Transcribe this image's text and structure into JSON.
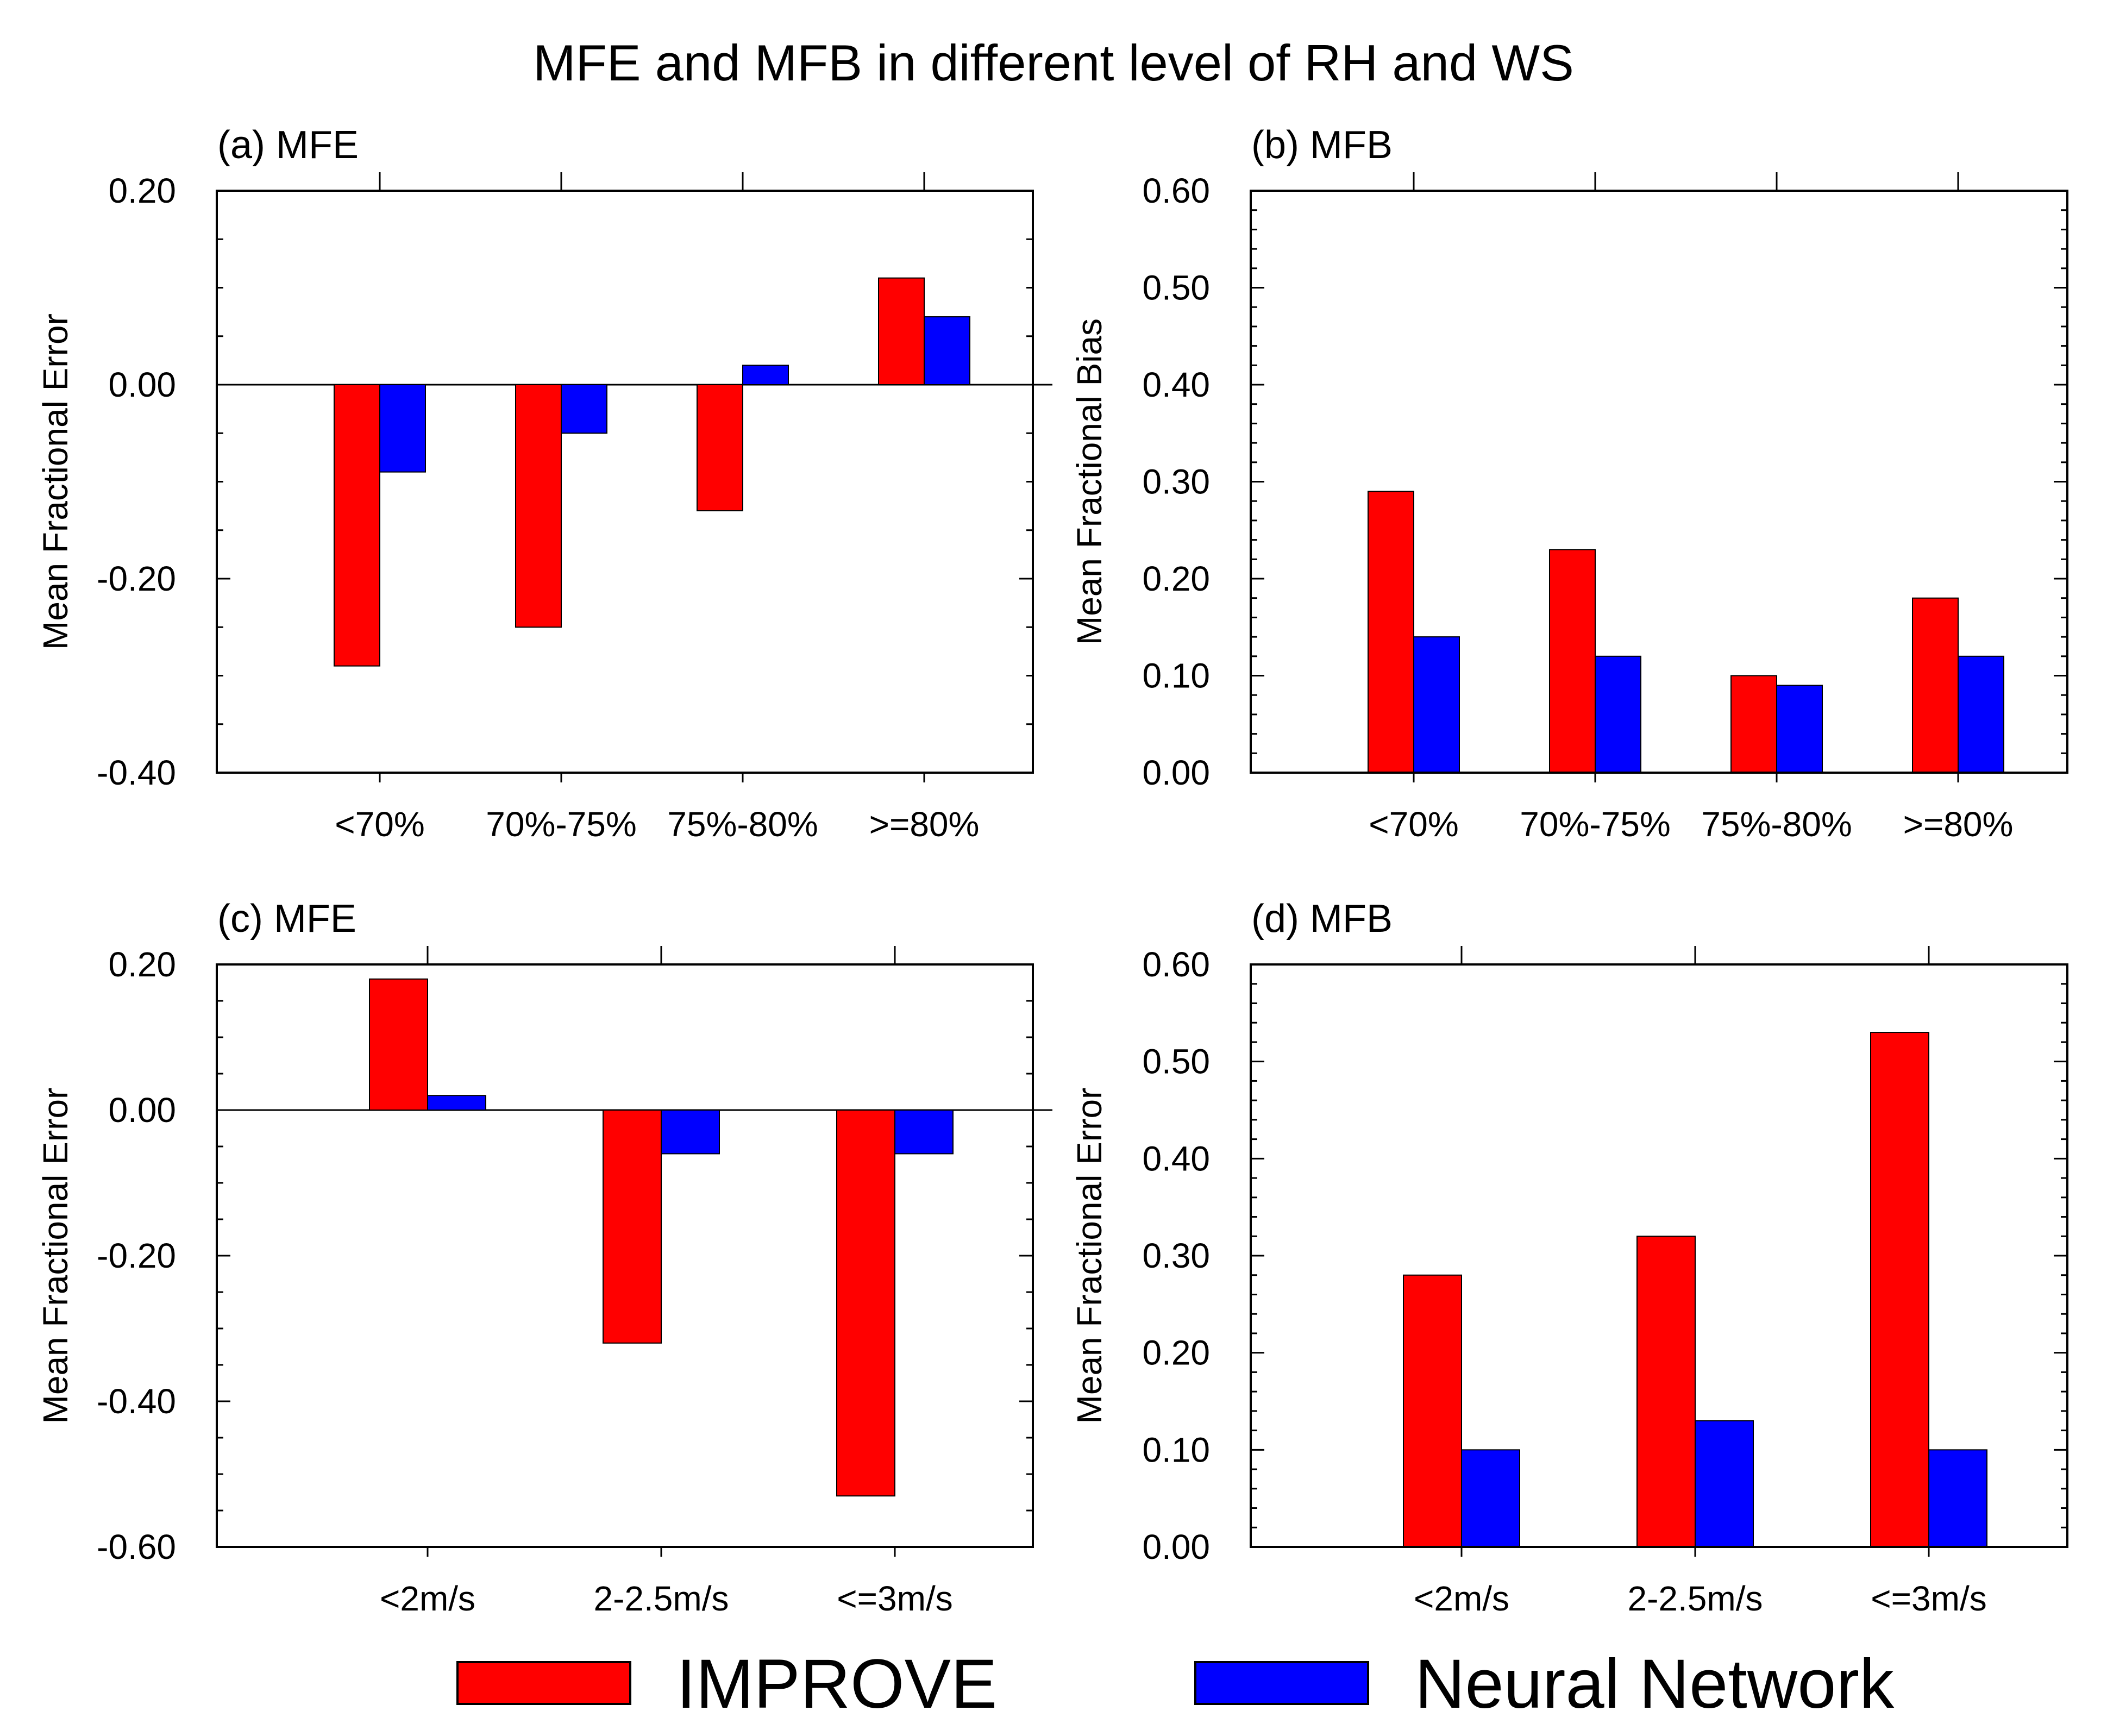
{
  "figure_title": "MFE and MFB in different level of RH and WS",
  "colors": {
    "IMPROVE": "#ff0000",
    "Neural Network": "#0000ff",
    "axis": "#000000"
  },
  "legend": {
    "placement": "bottom-center",
    "items": [
      {
        "label": "IMPROVE",
        "color": "#ff0000"
      },
      {
        "label": "Neural Network",
        "color": "#0000ff"
      }
    ]
  },
  "chart_data": [
    {
      "panel": "(a)",
      "title": "(a)  MFE",
      "type": "bar",
      "ylabel": "Mean Fractional Error",
      "ylim": [
        -0.4,
        0.2
      ],
      "yticks": [
        -0.4,
        -0.2,
        0.0,
        0.2
      ],
      "ytick_labels": [
        "-0.40",
        "-0.20",
        "0.00",
        "0.20"
      ],
      "minor_step": 0.05,
      "zero_line": true,
      "grid": false,
      "categories": [
        "<70%",
        "70%-75%",
        "75%-80%",
        ">=80%"
      ],
      "series": [
        {
          "name": "IMPROVE",
          "values": [
            -0.29,
            -0.25,
            -0.13,
            0.11
          ]
        },
        {
          "name": "Neural Network",
          "values": [
            -0.09,
            -0.05,
            0.02,
            0.07
          ]
        }
      ]
    },
    {
      "panel": "(b)",
      "title": "(b) MFB",
      "type": "bar",
      "ylabel": "Mean Fractional Bias",
      "ylim": [
        0.0,
        0.6
      ],
      "yticks": [
        0.0,
        0.1,
        0.2,
        0.3,
        0.4,
        0.5,
        0.6
      ],
      "ytick_labels": [
        "0.00",
        "0.10",
        "0.20",
        "0.30",
        "0.40",
        "0.50",
        "0.60"
      ],
      "minor_step": 0.02,
      "zero_line": false,
      "grid": false,
      "categories": [
        "<70%",
        "70%-75%",
        "75%-80%",
        ">=80%"
      ],
      "series": [
        {
          "name": "IMPROVE",
          "values": [
            0.29,
            0.23,
            0.1,
            0.18
          ]
        },
        {
          "name": "Neural Network",
          "values": [
            0.14,
            0.12,
            0.09,
            0.12
          ]
        }
      ]
    },
    {
      "panel": "(c)",
      "title": "(c) MFE",
      "type": "bar",
      "ylabel": "Mean Fractional Error",
      "ylim": [
        -0.6,
        0.2
      ],
      "yticks": [
        -0.6,
        -0.4,
        -0.2,
        0.0,
        0.2
      ],
      "ytick_labels": [
        "-0.60",
        "-0.40",
        "-0.20",
        "0.00",
        "0.20"
      ],
      "minor_step": 0.05,
      "zero_line": true,
      "grid": false,
      "categories": [
        "<2m/s",
        "2-2.5m/s",
        "<=3m/s"
      ],
      "series": [
        {
          "name": "IMPROVE",
          "values": [
            0.18,
            -0.32,
            -0.53
          ]
        },
        {
          "name": "Neural Network",
          "values": [
            0.02,
            -0.06,
            -0.06
          ]
        }
      ]
    },
    {
      "panel": "(d)",
      "title": "(d) MFB",
      "type": "bar",
      "ylabel": "Mean Fractional Error",
      "ylim": [
        0.0,
        0.6
      ],
      "yticks": [
        0.0,
        0.1,
        0.2,
        0.3,
        0.4,
        0.5,
        0.6
      ],
      "ytick_labels": [
        "0.00",
        "0.10",
        "0.20",
        "0.30",
        "0.40",
        "0.50",
        "0.60"
      ],
      "minor_step": 0.02,
      "zero_line": false,
      "grid": false,
      "categories": [
        "<2m/s",
        "2-2.5m/s",
        "<=3m/s"
      ],
      "series": [
        {
          "name": "IMPROVE",
          "values": [
            0.28,
            0.32,
            0.53
          ]
        },
        {
          "name": "Neural Network",
          "values": [
            0.1,
            0.13,
            0.1
          ]
        }
      ]
    }
  ]
}
